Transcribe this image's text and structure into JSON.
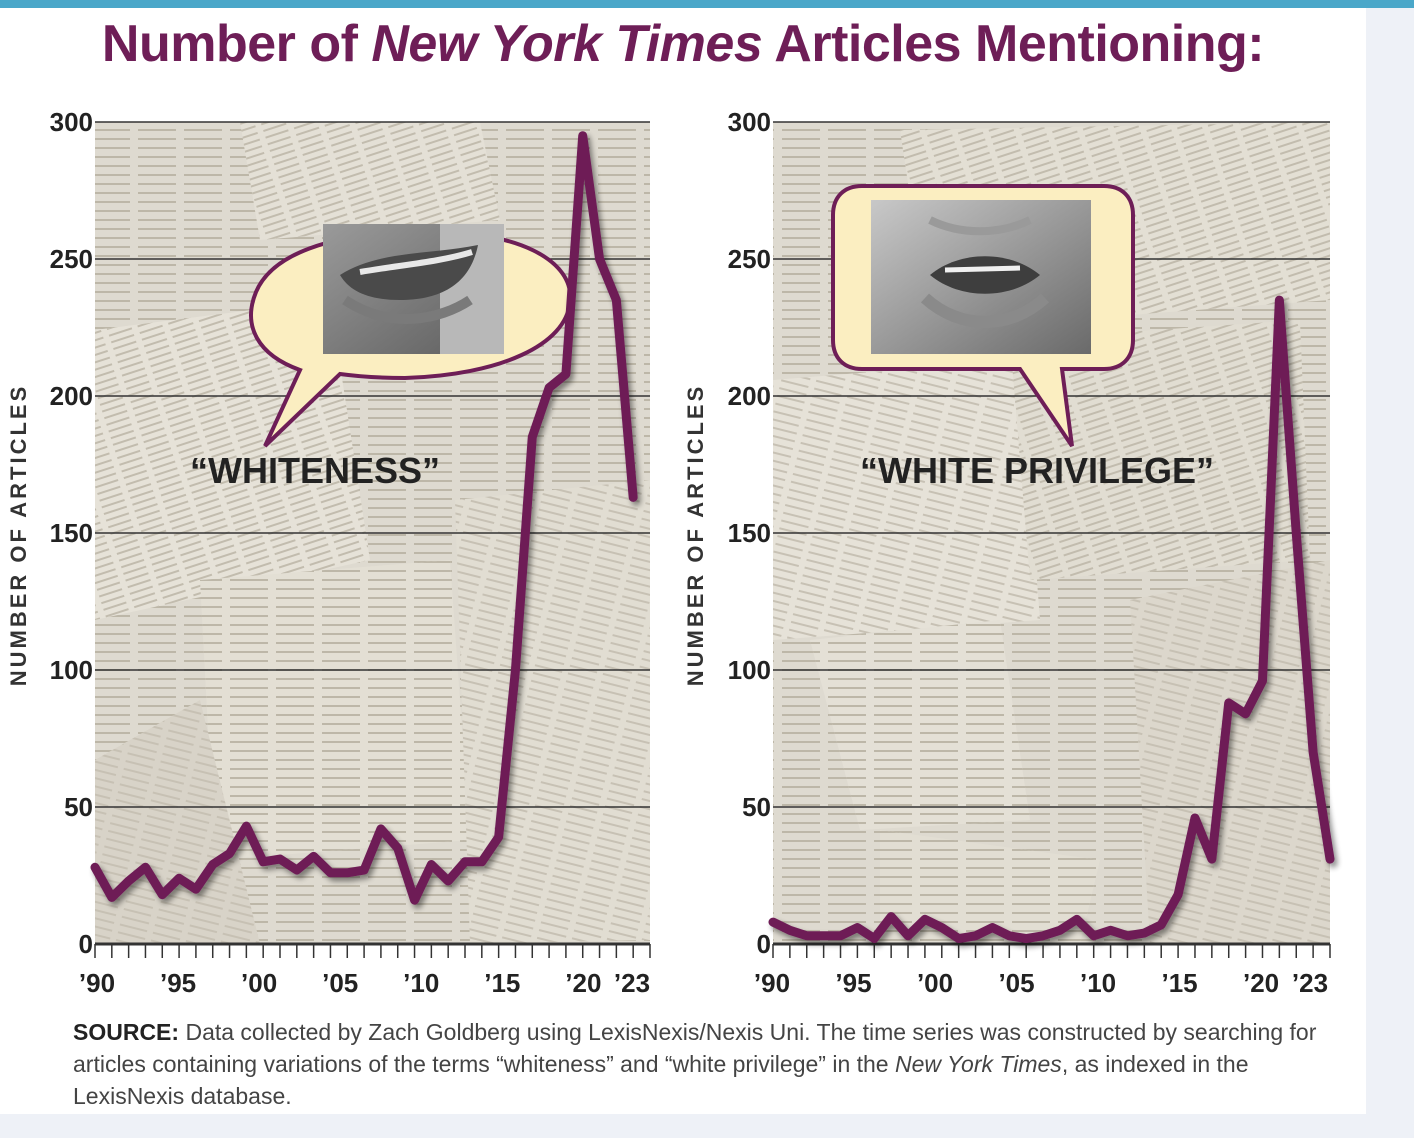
{
  "title": {
    "prefix": "Number of",
    "italic": "New York Times",
    "suffix": "Articles Mentioning:"
  },
  "source": {
    "label": "SOURCE:",
    "text_1": "Data collected by Zach Goldberg using LexisNexis/Nexis Uni. The time series was constructed by searching for articles containing variations of the terms “whiteness” and “white privilege” in the",
    "italic": "New York Times",
    "text_2": ", as indexed in the LexisNexis database."
  },
  "colors": {
    "line": "#6e1e57",
    "title": "#6e1e57",
    "bubble_fill": "#fbeec1",
    "bubble_stroke": "#6e1e57",
    "paper": "#dcd8cd",
    "gridline": "#333333"
  },
  "chart_data": [
    {
      "type": "line",
      "term": "“WHITENESS”",
      "ylabel": "NUMBER OF ARTICLES",
      "xlabel": "",
      "ylim": [
        0,
        300
      ],
      "yticks": [
        "0",
        "50",
        "100",
        "150",
        "200",
        "250",
        "300"
      ],
      "xticks": [
        "’90",
        "’95",
        "’00",
        "’05",
        "’10",
        "’15",
        "’20",
        "’23"
      ],
      "grid": true,
      "background_image": "newspaper-collage",
      "x": [
        1990,
        1991,
        1992,
        1993,
        1994,
        1995,
        1996,
        1997,
        1998,
        1999,
        2000,
        2001,
        2002,
        2003,
        2004,
        2005,
        2006,
        2007,
        2008,
        2009,
        2010,
        2011,
        2012,
        2013,
        2014,
        2015,
        2016,
        2017,
        2018,
        2019,
        2020,
        2021,
        2022,
        2023
      ],
      "values": [
        28,
        17,
        23,
        28,
        18,
        24,
        20,
        29,
        33,
        43,
        30,
        31,
        27,
        32,
        26,
        26,
        27,
        42,
        35,
        16,
        29,
        23,
        30,
        30,
        39,
        100,
        185,
        203,
        208,
        295,
        250,
        235,
        163,
        null
      ]
    },
    {
      "type": "line",
      "term": "“WHITE PRIVILEGE”",
      "ylabel": "NUMBER OF ARTICLES",
      "xlabel": "",
      "ylim": [
        0,
        300
      ],
      "yticks": [
        "0",
        "50",
        "100",
        "150",
        "200",
        "250",
        "300"
      ],
      "xticks": [
        "’90",
        "’95",
        "’00",
        "’05",
        "’10",
        "’15",
        "’20",
        "’23"
      ],
      "grid": true,
      "background_image": "newspaper-collage",
      "x": [
        1990,
        1991,
        1992,
        1993,
        1994,
        1995,
        1996,
        1997,
        1998,
        1999,
        2000,
        2001,
        2002,
        2003,
        2004,
        2005,
        2006,
        2007,
        2008,
        2009,
        2010,
        2011,
        2012,
        2013,
        2014,
        2015,
        2016,
        2017,
        2018,
        2019,
        2020,
        2021,
        2022,
        2023
      ],
      "values": [
        8,
        5,
        3,
        3,
        3,
        6,
        2,
        10,
        3,
        9,
        6,
        2,
        3,
        6,
        3,
        2,
        3,
        5,
        9,
        3,
        5,
        3,
        4,
        7,
        18,
        46,
        31,
        88,
        84,
        96,
        235,
        150,
        70,
        31
      ]
    }
  ]
}
